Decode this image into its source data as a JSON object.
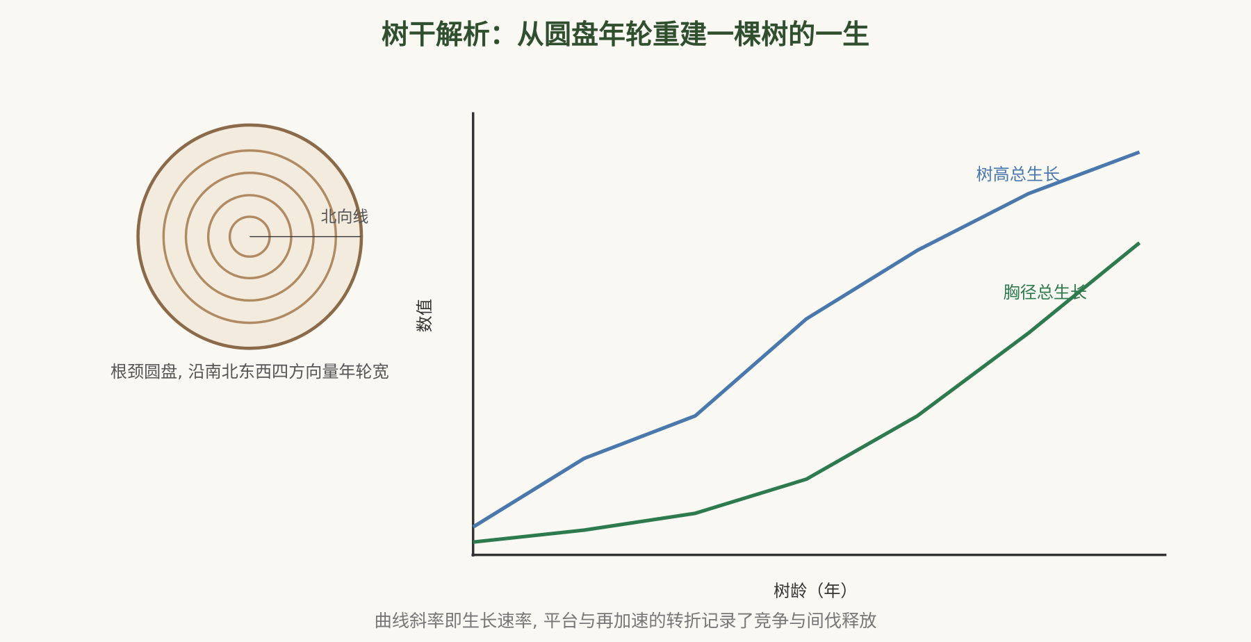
{
  "chart_data": {
    "type": "line",
    "title": "树干解析：从圆盘年轮重建一棵树的一生",
    "subtitle": "曲线斜率即生长速率, 平台与再加速的转折记录了竞争与间伐释放",
    "x_label": "树龄（年）",
    "y_label": "数值",
    "categories": [
      null,
      null,
      null,
      null,
      null,
      null,
      null
    ],
    "series": [
      {
        "name": "树高总生长",
        "color": "#4a78ad",
        "values": [
          6.3,
          21.8,
          31.4,
          53.3,
          68.8,
          81.6,
          91
        ]
      },
      {
        "name": "胸径总生长",
        "color": "#2e7a4f",
        "values": [
          2.9,
          5.6,
          9.4,
          17.1,
          31.4,
          50.1,
          70.5
        ]
      }
    ],
    "ylim": [
      0,
      100
    ],
    "grid": false
  },
  "disc": {
    "label": "北向线",
    "caption": "根颈圆盘, 沿南北东西四方向量年轮宽"
  }
}
